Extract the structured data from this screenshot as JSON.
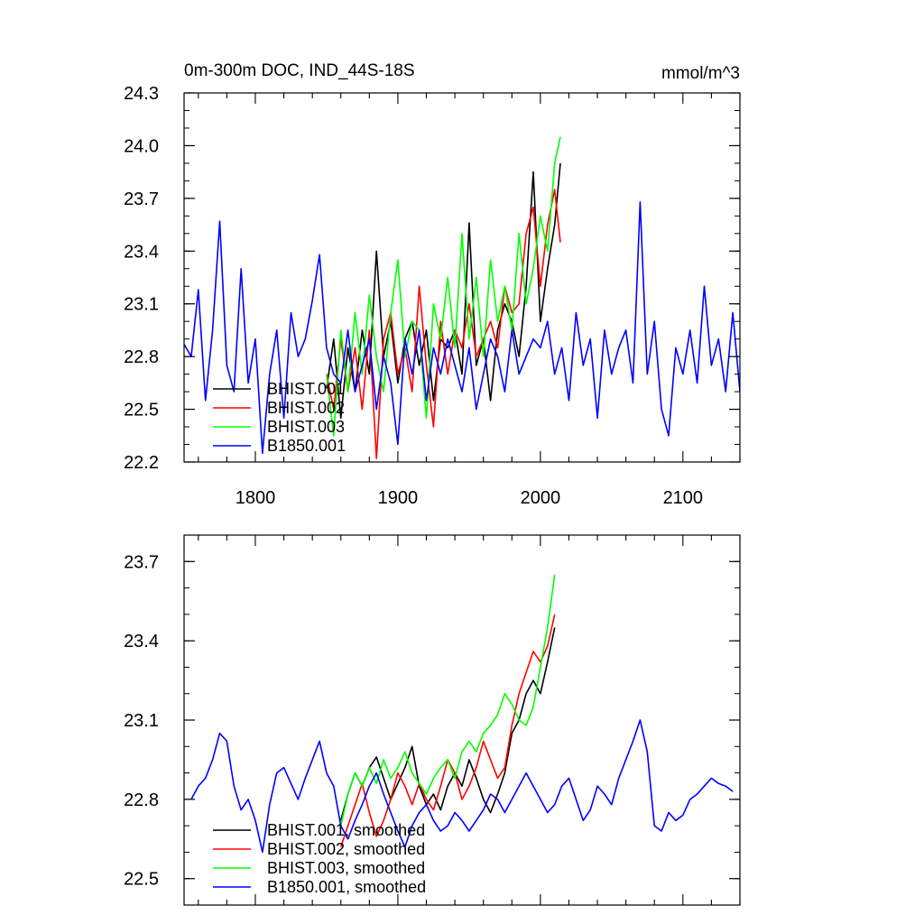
{
  "chart_data": [
    {
      "type": "line",
      "title": "0m-300m DOC, IND_44S-18S",
      "units": "mmol/m^3",
      "xlabel": "",
      "ylabel": "",
      "xlim": [
        1750,
        2140
      ],
      "ylim": [
        22.2,
        24.3
      ],
      "xticks": [
        1800,
        1900,
        2000,
        2100
      ],
      "xtick_labels": [
        "1800",
        "1900",
        "2000",
        "2100"
      ],
      "yticks": [
        22.2,
        22.5,
        22.8,
        23.1,
        23.4,
        23.7,
        24.0,
        24.3
      ],
      "ytick_labels": [
        "22.2",
        "22.5",
        "22.8",
        "23.1",
        "23.4",
        "23.7",
        "24.0",
        "24.3"
      ],
      "legend_position": "bottom-left",
      "series": [
        {
          "name": "BHIST.001",
          "color": "#000000",
          "x": [
            1850,
            1855,
            1860,
            1865,
            1870,
            1875,
            1880,
            1885,
            1890,
            1895,
            1900,
            1905,
            1910,
            1915,
            1920,
            1925,
            1930,
            1935,
            1940,
            1945,
            1950,
            1955,
            1960,
            1965,
            1970,
            1975,
            1980,
            1985,
            1990,
            1995,
            2000,
            2005,
            2010,
            2014
          ],
          "values": [
            22.62,
            22.9,
            22.45,
            22.85,
            22.6,
            22.95,
            22.7,
            23.4,
            22.8,
            23.0,
            22.65,
            22.9,
            23.0,
            22.75,
            22.95,
            22.55,
            22.9,
            22.85,
            22.95,
            22.7,
            23.56,
            22.75,
            22.9,
            22.55,
            22.95,
            23.1,
            23.0,
            22.8,
            23.2,
            23.85,
            23.0,
            23.3,
            23.55,
            23.9
          ]
        },
        {
          "name": "BHIST.002",
          "color": "#ff0000",
          "x": [
            1850,
            1855,
            1860,
            1865,
            1870,
            1875,
            1880,
            1885,
            1890,
            1895,
            1900,
            1905,
            1910,
            1915,
            1920,
            1925,
            1930,
            1935,
            1940,
            1945,
            1950,
            1955,
            1960,
            1965,
            1970,
            1975,
            1980,
            1985,
            1990,
            1995,
            2000,
            2005,
            2010,
            2014
          ],
          "values": [
            22.7,
            22.5,
            22.9,
            22.6,
            22.85,
            22.5,
            22.95,
            22.22,
            22.9,
            23.05,
            22.7,
            22.85,
            22.6,
            23.2,
            22.75,
            22.4,
            23.0,
            22.7,
            22.95,
            22.85,
            23.1,
            22.8,
            22.9,
            23.0,
            22.85,
            23.2,
            23.05,
            23.1,
            23.5,
            23.65,
            23.2,
            23.55,
            23.75,
            23.45
          ]
        },
        {
          "name": "BHIST.003",
          "color": "#00ff00",
          "x": [
            1850,
            1855,
            1860,
            1865,
            1870,
            1875,
            1880,
            1885,
            1890,
            1895,
            1900,
            1905,
            1910,
            1915,
            1920,
            1925,
            1930,
            1935,
            1940,
            1945,
            1950,
            1955,
            1960,
            1965,
            1970,
            1975,
            1980,
            1985,
            1990,
            1995,
            2000,
            2005,
            2010,
            2014
          ],
          "values": [
            22.7,
            22.35,
            22.95,
            22.6,
            23.05,
            22.7,
            23.15,
            22.8,
            22.6,
            23.05,
            23.35,
            22.8,
            23.0,
            22.95,
            22.45,
            23.1,
            22.9,
            23.25,
            22.85,
            23.5,
            22.9,
            23.25,
            22.8,
            23.35,
            23.0,
            23.2,
            22.95,
            23.5,
            23.1,
            23.3,
            23.6,
            23.4,
            23.9,
            24.05
          ]
        },
        {
          "name": "B1850.001",
          "color": "#0000ff",
          "x": [
            1750,
            1755,
            1760,
            1765,
            1770,
            1775,
            1780,
            1785,
            1790,
            1795,
            1800,
            1805,
            1810,
            1815,
            1820,
            1825,
            1830,
            1835,
            1840,
            1845,
            1850,
            1855,
            1860,
            1865,
            1870,
            1875,
            1880,
            1885,
            1890,
            1895,
            1900,
            1905,
            1910,
            1915,
            1920,
            1925,
            1930,
            1935,
            1940,
            1945,
            1950,
            1955,
            1960,
            1965,
            1970,
            1975,
            1980,
            1985,
            1990,
            1995,
            2000,
            2005,
            2010,
            2015,
            2020,
            2025,
            2030,
            2035,
            2040,
            2045,
            2050,
            2055,
            2060,
            2065,
            2070,
            2075,
            2080,
            2085,
            2090,
            2095,
            2100,
            2105,
            2110,
            2115,
            2120,
            2125,
            2130,
            2135,
            2140
          ],
          "values": [
            22.87,
            22.8,
            23.18,
            22.55,
            22.95,
            23.57,
            22.75,
            22.6,
            23.3,
            22.65,
            22.9,
            22.25,
            22.7,
            22.95,
            22.45,
            23.05,
            22.8,
            22.9,
            23.12,
            23.38,
            22.85,
            22.7,
            22.65,
            22.95,
            22.6,
            22.75,
            22.9,
            22.5,
            22.8,
            22.65,
            22.3,
            22.9,
            22.7,
            22.95,
            22.55,
            22.85,
            22.7,
            22.9,
            22.75,
            22.6,
            22.85,
            22.5,
            22.7,
            22.9,
            22.8,
            22.6,
            22.95,
            22.7,
            22.8,
            22.9,
            22.85,
            23.0,
            22.7,
            22.85,
            22.55,
            23.05,
            22.75,
            22.9,
            22.45,
            22.95,
            22.7,
            22.85,
            22.95,
            22.65,
            23.68,
            22.7,
            23.0,
            22.5,
            22.35,
            22.85,
            22.7,
            22.95,
            22.65,
            23.2,
            22.75,
            22.9,
            22.6,
            23.05,
            22.6
          ]
        }
      ]
    },
    {
      "type": "line",
      "title": "",
      "xlabel": "",
      "ylabel": "",
      "xlim": [
        1750,
        2140
      ],
      "ylim": [
        22.4,
        23.8
      ],
      "yticks": [
        22.5,
        22.8,
        23.1,
        23.4,
        23.7
      ],
      "ytick_labels": [
        "22.5",
        "22.8",
        "23.1",
        "23.4",
        "23.7"
      ],
      "legend_position": "bottom-left",
      "series": [
        {
          "name": "BHIST.001, smoothed",
          "color": "#000000",
          "x": [
            1860,
            1865,
            1870,
            1875,
            1880,
            1885,
            1890,
            1895,
            1900,
            1905,
            1910,
            1915,
            1920,
            1925,
            1930,
            1935,
            1940,
            1945,
            1950,
            1955,
            1960,
            1965,
            1970,
            1975,
            1980,
            1985,
            1990,
            1995,
            2000,
            2005,
            2010
          ],
          "values": [
            22.72,
            22.82,
            22.9,
            22.85,
            22.92,
            22.96,
            22.88,
            22.8,
            22.86,
            22.92,
            23.0,
            22.85,
            22.78,
            22.82,
            22.76,
            22.85,
            22.9,
            22.85,
            22.95,
            22.88,
            22.8,
            22.75,
            22.82,
            22.9,
            23.05,
            23.1,
            23.2,
            23.25,
            23.2,
            23.32,
            23.45
          ]
        },
        {
          "name": "BHIST.002, smoothed",
          "color": "#ff0000",
          "x": [
            1860,
            1865,
            1870,
            1875,
            1880,
            1885,
            1890,
            1895,
            1900,
            1905,
            1910,
            1915,
            1920,
            1925,
            1930,
            1935,
            1940,
            1945,
            1950,
            1955,
            1960,
            1965,
            1970,
            1975,
            1980,
            1985,
            1990,
            1995,
            2000,
            2005,
            2010
          ],
          "values": [
            22.62,
            22.7,
            22.78,
            22.86,
            22.75,
            22.66,
            22.72,
            22.8,
            22.9,
            22.85,
            22.78,
            22.86,
            22.8,
            22.76,
            22.85,
            22.95,
            22.9,
            22.8,
            22.85,
            22.92,
            23.02,
            22.95,
            22.88,
            22.92,
            23.08,
            23.2,
            23.28,
            23.36,
            23.32,
            23.38,
            23.5
          ]
        },
        {
          "name": "BHIST.003, smoothed",
          "color": "#00ff00",
          "x": [
            1860,
            1865,
            1870,
            1875,
            1880,
            1885,
            1890,
            1895,
            1900,
            1905,
            1910,
            1915,
            1920,
            1925,
            1930,
            1935,
            1940,
            1945,
            1950,
            1955,
            1960,
            1965,
            1970,
            1975,
            1980,
            1985,
            1990,
            1995,
            2000,
            2005,
            2010
          ],
          "values": [
            22.7,
            22.82,
            22.9,
            22.85,
            22.92,
            22.86,
            22.95,
            22.88,
            22.92,
            22.98,
            22.9,
            22.86,
            22.82,
            22.88,
            22.92,
            22.95,
            22.88,
            22.98,
            23.02,
            22.98,
            23.05,
            23.08,
            23.12,
            23.2,
            23.16,
            23.1,
            23.08,
            23.15,
            23.3,
            23.45,
            23.65
          ]
        },
        {
          "name": "B1850.001, smoothed",
          "color": "#0000ff",
          "x": [
            1755,
            1760,
            1765,
            1770,
            1775,
            1780,
            1785,
            1790,
            1795,
            1800,
            1805,
            1810,
            1815,
            1820,
            1825,
            1830,
            1835,
            1840,
            1845,
            1850,
            1855,
            1860,
            1865,
            1870,
            1875,
            1880,
            1885,
            1890,
            1895,
            1900,
            1905,
            1910,
            1915,
            1920,
            1925,
            1930,
            1935,
            1940,
            1945,
            1950,
            1955,
            1960,
            1965,
            1970,
            1975,
            1980,
            1985,
            1990,
            1995,
            2000,
            2005,
            2010,
            2015,
            2020,
            2025,
            2030,
            2035,
            2040,
            2045,
            2050,
            2055,
            2060,
            2065,
            2070,
            2075,
            2080,
            2085,
            2090,
            2095,
            2100,
            2105,
            2110,
            2115,
            2120,
            2125,
            2130,
            2135
          ],
          "values": [
            22.8,
            22.85,
            22.88,
            22.95,
            23.05,
            23.02,
            22.85,
            22.76,
            22.8,
            22.72,
            22.6,
            22.78,
            22.9,
            22.92,
            22.86,
            22.8,
            22.88,
            22.95,
            23.02,
            22.9,
            22.85,
            22.7,
            22.65,
            22.72,
            22.78,
            22.85,
            22.9,
            22.82,
            22.75,
            22.68,
            22.62,
            22.7,
            22.75,
            22.78,
            22.72,
            22.68,
            22.7,
            22.75,
            22.72,
            22.68,
            22.72,
            22.76,
            22.82,
            22.8,
            22.75,
            22.8,
            22.85,
            22.9,
            22.85,
            22.8,
            22.75,
            22.78,
            22.85,
            22.88,
            22.8,
            22.72,
            22.76,
            22.85,
            22.82,
            22.78,
            22.88,
            22.95,
            23.02,
            23.1,
            22.98,
            22.7,
            22.68,
            22.75,
            22.72,
            22.74,
            22.8,
            22.82,
            22.85,
            22.88,
            22.86,
            22.85,
            22.83
          ]
        }
      ]
    }
  ]
}
